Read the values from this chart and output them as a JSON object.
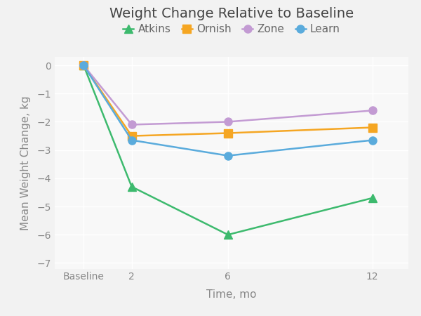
{
  "title": "Weight Change Relative to Baseline",
  "xlabel": "Time, mo",
  "ylabel": "Mean Weight Change, kg",
  "background_color": "#f2f2f2",
  "plot_background_color": "#f8f8f8",
  "x_labels": [
    "Baseline",
    "2",
    "6",
    "12"
  ],
  "x_positions": [
    0,
    2,
    6,
    12
  ],
  "series": [
    {
      "name": "Atkins",
      "color": "#3dba6e",
      "marker": "^",
      "values": [
        0,
        -4.3,
        -6.0,
        -4.7
      ]
    },
    {
      "name": "Ornish",
      "color": "#f5a623",
      "marker": "s",
      "values": [
        0,
        -2.5,
        -2.4,
        -2.2
      ]
    },
    {
      "name": "Zone",
      "color": "#c39bd3",
      "marker": "o",
      "values": [
        0,
        -2.1,
        -2.0,
        -1.6
      ]
    },
    {
      "name": "Learn",
      "color": "#5aabdc",
      "marker": "o",
      "values": [
        0,
        -2.65,
        -3.2,
        -2.65
      ]
    }
  ],
  "ylim": [
    -7.2,
    0.3
  ],
  "yticks": [
    0,
    -1,
    -2,
    -3,
    -4,
    -5,
    -6,
    -7
  ],
  "title_fontsize": 14,
  "axis_label_fontsize": 11,
  "tick_label_fontsize": 10,
  "legend_fontsize": 11,
  "linewidth": 1.8,
  "markersize": 8
}
